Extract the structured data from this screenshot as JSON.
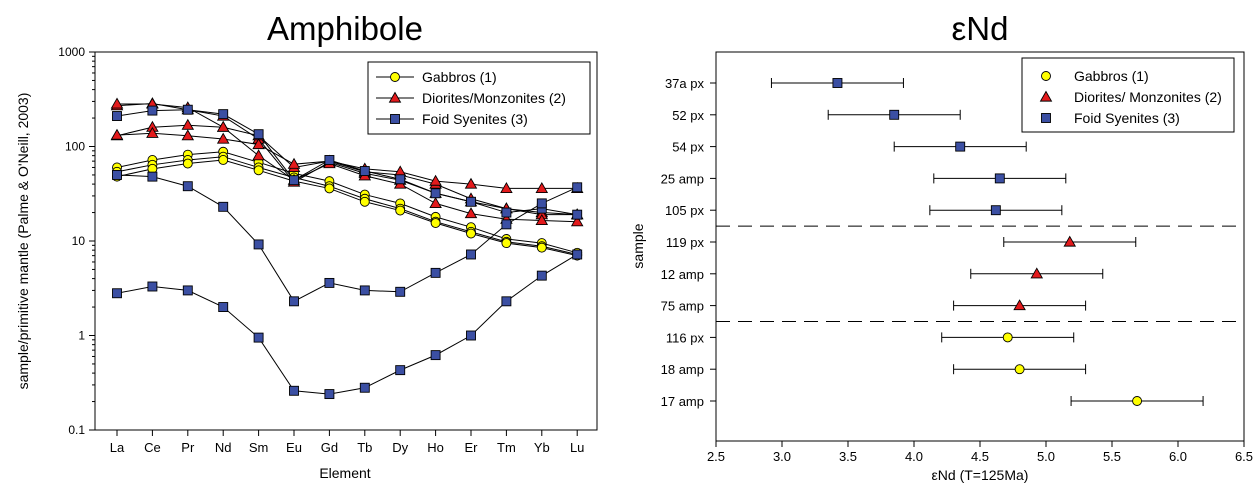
{
  "chart_data": [
    {
      "type": "line",
      "title": "Amphibole",
      "xlabel": "Element",
      "ylabel": "sample/primitive mantle (Palme & O'Neill, 2003)",
      "yscale": "log",
      "ylim": [
        0.1,
        1000
      ],
      "yticks": [
        "0.1",
        "1",
        "10",
        "100",
        "1000"
      ],
      "categories": [
        "La",
        "Ce",
        "Pr",
        "Nd",
        "Sm",
        "Eu",
        "Gd",
        "Tb",
        "Dy",
        "Ho",
        "Er",
        "Tm",
        "Yb",
        "Lu"
      ],
      "legend": {
        "position": "top-right",
        "entries": [
          {
            "label": "Gabbros (1)",
            "marker": "circle",
            "color": "#ffff00"
          },
          {
            "label": "Diorites/Monzonites (2)",
            "marker": "triangle",
            "color": "#e31a1c"
          },
          {
            "label": "Foid Syenites (3)",
            "marker": "square",
            "color": "#3b4fa3"
          }
        ]
      },
      "series": [
        {
          "group": "Gabbros (1)",
          "values": [
            60,
            72,
            82,
            88,
            68,
            52,
            43,
            31,
            25,
            18,
            14,
            10.5,
            9.5,
            7.5
          ]
        },
        {
          "group": "Gabbros (1)",
          "values": [
            54,
            64,
            72,
            78,
            60,
            47,
            38,
            28,
            22,
            16,
            12.5,
            9.8,
            8.8,
            7.2
          ]
        },
        {
          "group": "Gabbros (1)",
          "values": [
            48,
            58,
            66,
            72,
            56,
            43,
            36,
            26,
            21,
            15.5,
            12,
            9.5,
            8.5,
            7
          ]
        },
        {
          "group": "Diorites/Monzonites (2)",
          "values": [
            270,
            285,
            245,
            210,
            120,
            42,
            68,
            52,
            44,
            32,
            26,
            22,
            20,
            19
          ]
        },
        {
          "group": "Diorites/Monzonites (2)",
          "values": [
            130,
            160,
            168,
            160,
            130,
            60,
            70,
            54,
            50,
            40,
            28,
            22,
            19,
            19
          ]
        },
        {
          "group": "Diorites/Monzonites (2)",
          "values": [
            132,
            138,
            130,
            120,
            105,
            65,
            70,
            58,
            54,
            43,
            40,
            36,
            36,
            36
          ]
        },
        {
          "group": "Diorites/Monzonites (2)",
          "values": [
            282,
            282,
            258,
            160,
            80,
            44,
            66,
            49,
            40,
            25,
            19.5,
            17,
            16.5,
            16
          ]
        },
        {
          "group": "Foid Syenites (3)",
          "values": [
            210,
            240,
            245,
            220,
            135,
            44,
            72,
            55,
            45,
            32,
            26,
            20,
            22,
            19
          ]
        },
        {
          "group": "Foid Syenites (3)",
          "values": [
            50,
            48,
            38,
            23,
            9.2,
            2.3,
            3.6,
            3.0,
            2.9,
            4.6,
            7.2,
            15,
            25,
            37
          ]
        },
        {
          "group": "Foid Syenites (3)",
          "values": [
            2.8,
            3.3,
            3.0,
            2.0,
            0.95,
            0.26,
            0.24,
            0.28,
            0.43,
            0.62,
            1.0,
            2.3,
            4.3,
            7.2
          ]
        }
      ]
    },
    {
      "type": "scatter",
      "title": "εNd",
      "xlabel": "εNd (T=125Ma)",
      "ylabel": "sample",
      "xlim": [
        2.5,
        6.5
      ],
      "xticks": [
        "2.5",
        "3.0",
        "3.5",
        "4.0",
        "4.5",
        "5.0",
        "5.5",
        "6.0",
        "6.5"
      ],
      "categories": [
        "37a px",
        "52 px",
        "54 px",
        "25 amp",
        "105 px",
        "119 px",
        "12 amp",
        "75 amp",
        "116 px",
        "18 amp",
        "17 amp"
      ],
      "error_bars": "±0.5",
      "dashed_separators": true,
      "legend": {
        "position": "top-right",
        "entries": [
          {
            "label": "Gabbros (1)",
            "marker": "circle",
            "color": "#ffff00"
          },
          {
            "label": "Diorites/ Monzonites (2)",
            "marker": "triangle",
            "color": "#e31a1c"
          },
          {
            "label": "Foid Syenites (3)",
            "marker": "square",
            "color": "#3b4fa3"
          }
        ]
      },
      "points": [
        {
          "sample": "37a px",
          "value": 3.42,
          "error": 0.5,
          "group": "Foid Syenites (3)"
        },
        {
          "sample": "52 px",
          "value": 3.85,
          "error": 0.5,
          "group": "Foid Syenites (3)"
        },
        {
          "sample": "54 px",
          "value": 4.35,
          "error": 0.5,
          "group": "Foid Syenites (3)"
        },
        {
          "sample": "25 amp",
          "value": 4.65,
          "error": 0.5,
          "group": "Foid Syenites (3)"
        },
        {
          "sample": "105 px",
          "value": 4.62,
          "error": 0.5,
          "group": "Foid Syenites (3)"
        },
        {
          "sample": "119 px",
          "value": 5.18,
          "error": 0.5,
          "group": "Diorites/ Monzonites (2)"
        },
        {
          "sample": "12 amp",
          "value": 4.93,
          "error": 0.5,
          "group": "Diorites/ Monzonites (2)"
        },
        {
          "sample": "75 amp",
          "value": 4.8,
          "error": 0.5,
          "group": "Diorites/ Monzonites (2)"
        },
        {
          "sample": "116 px",
          "value": 4.71,
          "error": 0.5,
          "group": "Gabbros (1)"
        },
        {
          "sample": "18 amp",
          "value": 4.8,
          "error": 0.5,
          "group": "Gabbros (1)"
        },
        {
          "sample": "17 amp",
          "value": 5.69,
          "error": 0.5,
          "group": "Gabbros (1)"
        }
      ]
    }
  ]
}
